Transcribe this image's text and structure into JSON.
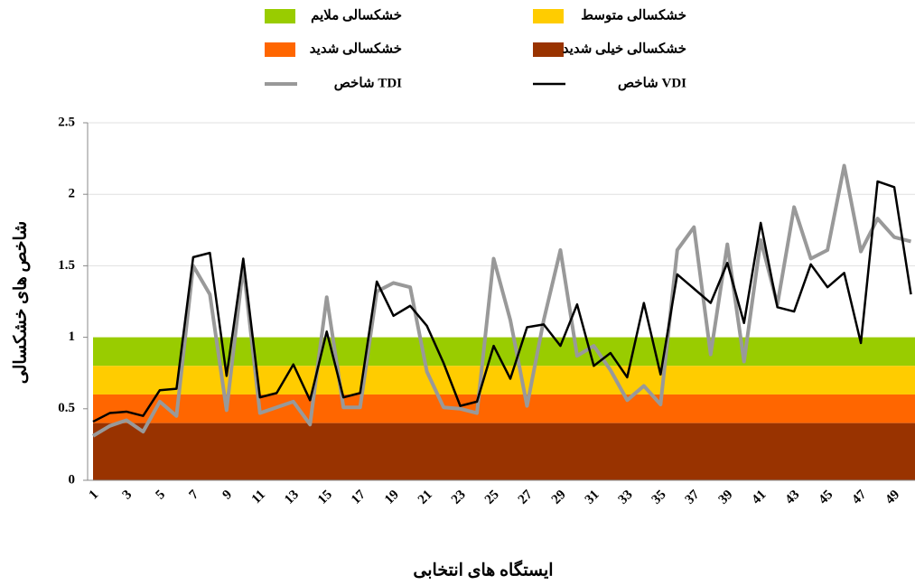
{
  "chart_data": {
    "type": "line",
    "x_label": "ایستگاه های انتخابی",
    "y_label": "شاخص های خشکسالی",
    "categories": [
      "1",
      null,
      "3",
      null,
      "5",
      null,
      "7",
      null,
      "9",
      null,
      "11",
      null,
      "13",
      null,
      "15",
      null,
      "17",
      null,
      "19",
      null,
      "21",
      null,
      "23",
      null,
      "25",
      null,
      "27",
      null,
      "29",
      null,
      "31",
      null,
      "33",
      null,
      "35",
      null,
      "37",
      null,
      "39",
      null,
      "41",
      null,
      "43",
      null,
      "45",
      null,
      "47",
      null,
      "49",
      null
    ],
    "ylim": [
      0,
      2.5
    ],
    "yticks": [
      0,
      0.5,
      1,
      1.5,
      2,
      2.5
    ],
    "grid": true,
    "bands": [
      {
        "name": "خشکسالی ملایم",
        "color": "#99cc00",
        "from": 0.8,
        "to": 1
      },
      {
        "name": "خشکسالی متوسط",
        "color": "#ffcc00",
        "from": 0.6,
        "to": 0.8
      },
      {
        "name": "خشکسالی شدید",
        "color": "#ff6600",
        "from": 0.4,
        "to": 0.6
      },
      {
        "name": "خشکسالی خیلی شدید",
        "color": "#993300",
        "from": 0,
        "to": 0.4
      }
    ],
    "series": [
      {
        "name": "شاخص TDI",
        "color": "#999999",
        "values": [
          0.31,
          0.38,
          0.42,
          0.34,
          0.55,
          0.45,
          1.5,
          1.3,
          0.49,
          1.5,
          0.47,
          0.51,
          0.55,
          0.39,
          1.28,
          0.51,
          0.51,
          1.32,
          1.38,
          1.35,
          0.76,
          0.51,
          0.5,
          0.47,
          1.55,
          1.12,
          0.52,
          1.12,
          1.61,
          0.87,
          0.94,
          0.77,
          0.56,
          0.66,
          0.53,
          1.61,
          1.77,
          0.88,
          1.65,
          0.83,
          1.68,
          1.23,
          1.91,
          1.55,
          1.61,
          2.2,
          1.6,
          1.83,
          1.7,
          1.67
        ]
      },
      {
        "name": "شاخص VDI",
        "color": "#000000",
        "values": [
          0.41,
          0.47,
          0.48,
          0.45,
          0.63,
          0.64,
          1.56,
          1.59,
          0.73,
          1.55,
          0.58,
          0.61,
          0.81,
          0.56,
          1.04,
          0.58,
          0.61,
          1.39,
          1.15,
          1.22,
          1.08,
          0.82,
          0.52,
          0.55,
          0.94,
          0.71,
          1.07,
          1.09,
          0.94,
          1.23,
          0.8,
          0.89,
          0.72,
          1.24,
          0.74,
          1.44,
          1.34,
          1.24,
          1.52,
          1.1,
          1.8,
          1.21,
          1.18,
          1.51,
          1.35,
          1.45,
          0.96,
          2.09,
          2.05,
          1.3
        ]
      }
    ]
  }
}
